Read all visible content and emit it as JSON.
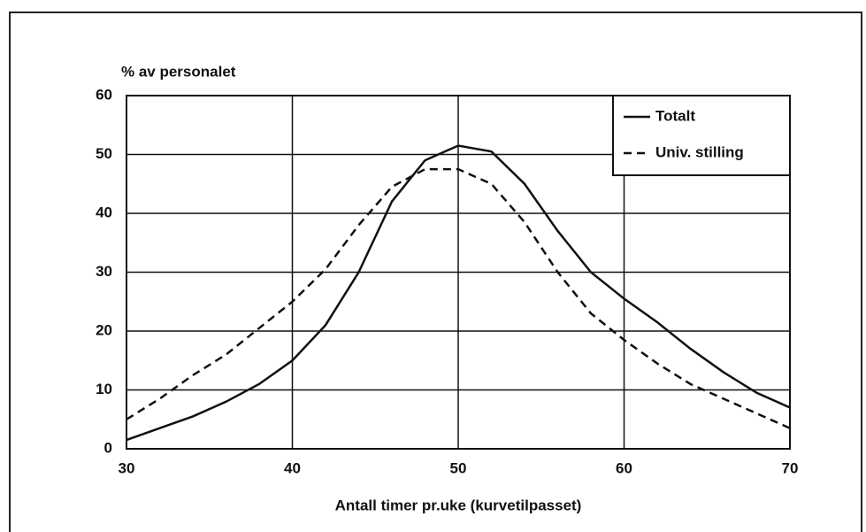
{
  "chart_data": {
    "type": "line",
    "ylabel": "% av personalet",
    "xlabel": "Antall timer pr.uke (kurvetilpasset)",
    "xlim": [
      30,
      70
    ],
    "xticks": [
      30,
      40,
      50,
      60,
      70
    ],
    "ylim": [
      0,
      60
    ],
    "yticks": [
      0,
      10,
      20,
      30,
      40,
      50,
      60
    ],
    "grid": true,
    "legend": "upper right",
    "x": [
      30,
      32,
      34,
      36,
      38,
      40,
      42,
      44,
      46,
      48,
      50,
      52,
      54,
      56,
      58,
      60,
      62,
      64,
      66,
      68,
      70
    ],
    "series": [
      {
        "name": "Totalt",
        "color": "#111111",
        "style": "solid",
        "values": [
          1.5,
          3.5,
          5.5,
          8,
          11,
          15,
          21,
          30,
          42,
          49,
          51.5,
          50.5,
          45,
          37,
          30,
          25.5,
          21.5,
          17,
          13,
          9.5,
          7
        ]
      },
      {
        "name": "Univ. stilling",
        "color": "#111111",
        "style": "dashed",
        "values": [
          5,
          8.5,
          12.5,
          16,
          20.5,
          25,
          30.5,
          38,
          44.5,
          47.5,
          47.5,
          45,
          38.5,
          30,
          23,
          18.5,
          14.5,
          11,
          8.5,
          6,
          3.5
        ]
      }
    ]
  }
}
